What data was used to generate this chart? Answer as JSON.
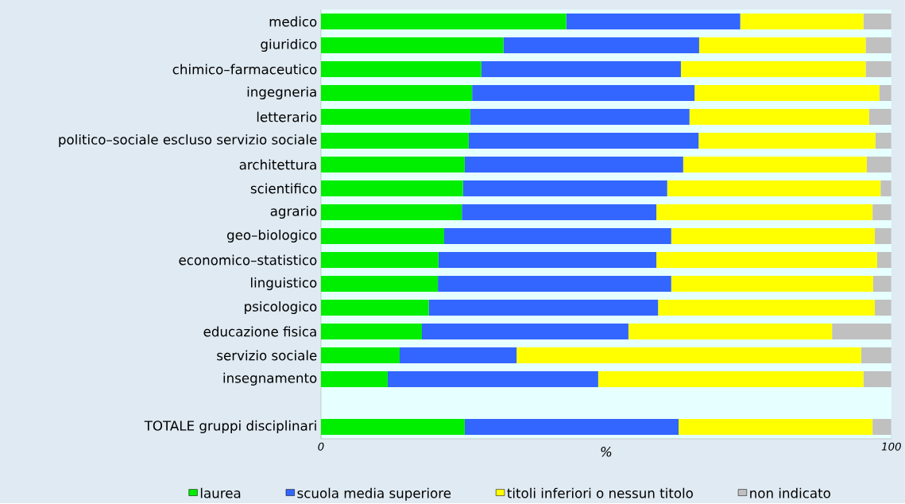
{
  "chart_data": {
    "type": "bar",
    "orientation": "horizontal",
    "stacked": true,
    "categories": [
      "medico",
      "giuridico",
      "chimico–farmaceutico",
      "ingegneria",
      "letterario",
      "politico–sociale escluso servizio sociale",
      "architettura",
      "scientifico",
      "agrario",
      "geo–biologico",
      "economico–statistico",
      "linguistico",
      "psicologico",
      "educazione fisica",
      "servizio sociale",
      "insegnamento",
      null,
      "TOTALE gruppi disciplinari"
    ],
    "series": [
      {
        "name": "laurea",
        "color": "#00ee00",
        "values": [
          43.0,
          32.0,
          28.1,
          26.5,
          26.2,
          25.9,
          25.2,
          24.9,
          24.7,
          21.6,
          20.6,
          20.5,
          18.9,
          17.7,
          13.8,
          11.7,
          null,
          25.2
        ]
      },
      {
        "name": "scuola media superiore",
        "color": "#3366ff",
        "values": [
          30.5,
          34.3,
          35.0,
          39.0,
          38.4,
          40.3,
          38.3,
          35.8,
          34.1,
          39.8,
          38.2,
          40.9,
          40.2,
          36.2,
          20.5,
          36.9,
          null,
          37.5
        ]
      },
      {
        "name": "titoli inferiori o nessun titolo",
        "color": "#ffff00",
        "values": [
          21.6,
          29.2,
          32.4,
          32.4,
          31.5,
          31.0,
          32.2,
          37.4,
          37.9,
          35.7,
          38.7,
          35.4,
          38.0,
          35.7,
          60.4,
          46.5,
          null,
          34.0
        ]
      },
      {
        "name": "non indicato",
        "color": "#c0c0c0",
        "values": [
          4.9,
          4.5,
          4.5,
          2.1,
          3.9,
          2.8,
          4.3,
          1.9,
          3.3,
          2.9,
          2.5,
          3.2,
          2.9,
          10.4,
          5.3,
          4.9,
          null,
          3.3
        ]
      }
    ],
    "xlim": [
      0,
      100
    ],
    "xticks": [
      0,
      100
    ],
    "xlabel": "%",
    "legend": "bottom",
    "grid": false
  }
}
